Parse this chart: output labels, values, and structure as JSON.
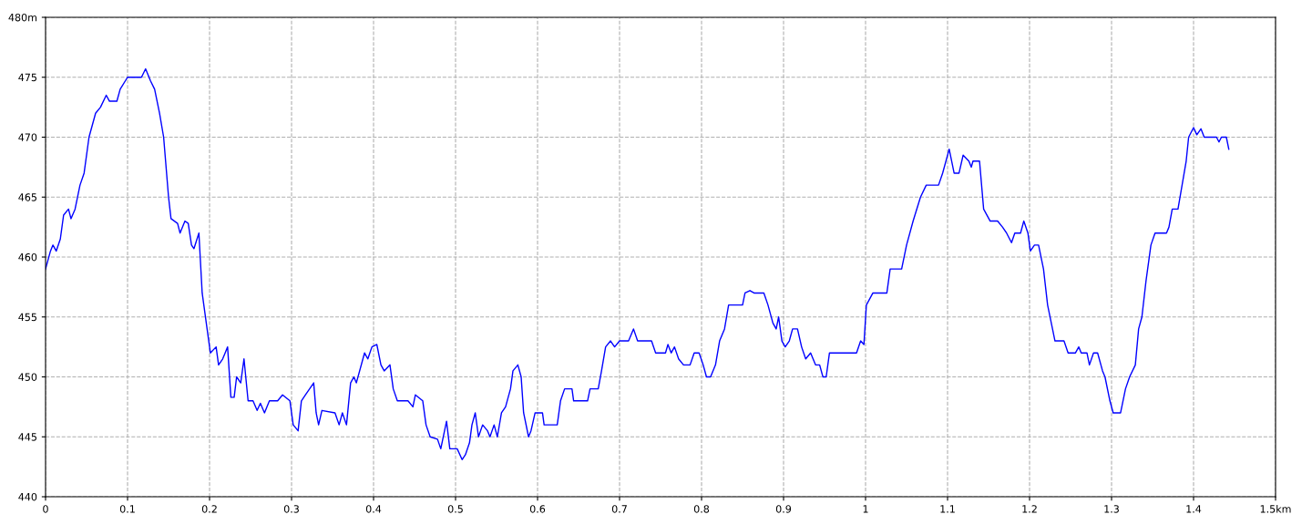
{
  "chart_data": {
    "type": "line",
    "xlim": [
      0,
      1.5
    ],
    "ylim": [
      440,
      480
    ],
    "xticks": [
      0,
      0.1,
      0.2,
      0.3,
      0.4,
      0.5,
      0.6,
      0.7,
      0.8,
      0.9,
      1,
      1.1,
      1.2,
      1.3,
      1.4,
      {
        "value": 1.5,
        "label": "1.5km"
      }
    ],
    "yticks": [
      440,
      445,
      450,
      455,
      460,
      465,
      470,
      475,
      {
        "value": 480,
        "label": "480m"
      }
    ],
    "grid": true,
    "marker": "none",
    "line_style": "solid",
    "series": [
      {
        "color": "#0000ff",
        "x": [
          0,
          0.006,
          0.009,
          0.013,
          0.018,
          0.022,
          0.028,
          0.031,
          0.036,
          0.042,
          0.047,
          0.053,
          0.061,
          0.067,
          0.074,
          0.078,
          0.087,
          0.091,
          0.1,
          0.117,
          0.122,
          0.128,
          0.133,
          0.139,
          0.144,
          0.15,
          0.153,
          0.161,
          0.164,
          0.17,
          0.174,
          0.178,
          0.181,
          0.187,
          0.191,
          0.197,
          0.201,
          0.208,
          0.211,
          0.216,
          0.219,
          0.222,
          0.226,
          0.23,
          0.233,
          0.238,
          0.242,
          0.247,
          0.253,
          0.258,
          0.262,
          0.267,
          0.273,
          0.283,
          0.289,
          0.298,
          0.302,
          0.308,
          0.312,
          0.317,
          0.322,
          0.327,
          0.33,
          0.333,
          0.337,
          0.353,
          0.358,
          0.362,
          0.367,
          0.372,
          0.376,
          0.379,
          0.389,
          0.393,
          0.398,
          0.404,
          0.409,
          0.413,
          0.42,
          0.424,
          0.429,
          0.442,
          0.448,
          0.451,
          0.46,
          0.464,
          0.469,
          0.478,
          0.482,
          0.489,
          0.493,
          0.502,
          0.508,
          0.512,
          0.517,
          0.52,
          0.524,
          0.528,
          0.533,
          0.539,
          0.542,
          0.547,
          0.551,
          0.556,
          0.561,
          0.567,
          0.57,
          0.576,
          0.58,
          0.583,
          0.589,
          0.592,
          0.597,
          0.606,
          0.608,
          0.624,
          0.628,
          0.633,
          0.642,
          0.644,
          0.661,
          0.664,
          0.674,
          0.678,
          0.683,
          0.689,
          0.694,
          0.7,
          0.711,
          0.717,
          0.722,
          0.739,
          0.744,
          0.756,
          0.759,
          0.763,
          0.767,
          0.772,
          0.778,
          0.786,
          0.791,
          0.797,
          0.802,
          0.806,
          0.811,
          0.817,
          0.822,
          0.828,
          0.833,
          0.85,
          0.853,
          0.859,
          0.864,
          0.876,
          0.881,
          0.887,
          0.891,
          0.894,
          0.898,
          0.902,
          0.907,
          0.911,
          0.917,
          0.922,
          0.927,
          0.933,
          0.939,
          0.944,
          0.948,
          0.952,
          0.956,
          0.989,
          0.994,
          0.998,
          1.001,
          1.009,
          1.026,
          1.03,
          1.044,
          1.05,
          1.058,
          1.067,
          1.074,
          1.089,
          1.094,
          1.102,
          1.108,
          1.114,
          1.119,
          1.126,
          1.129,
          1.131,
          1.139,
          1.144,
          1.152,
          1.161,
          1.167,
          1.172,
          1.178,
          1.182,
          1.189,
          1.193,
          1.198,
          1.201,
          1.206,
          1.211,
          1.217,
          1.222,
          1.228,
          1.231,
          1.242,
          1.247,
          1.256,
          1.26,
          1.263,
          1.27,
          1.273,
          1.278,
          1.283,
          1.289,
          1.292,
          1.298,
          1.302,
          1.311,
          1.317,
          1.322,
          1.329,
          1.333,
          1.337,
          1.342,
          1.348,
          1.353,
          1.367,
          1.37,
          1.374,
          1.381,
          1.386,
          1.391,
          1.394,
          1.4,
          1.404,
          1.409,
          1.413,
          1.428,
          1.431,
          1.434,
          1.44,
          1.443
        ],
        "values": [
          459,
          460.5,
          461,
          460.5,
          461.5,
          463.5,
          464,
          463.2,
          464,
          466,
          467,
          470,
          472,
          472.5,
          473.5,
          473,
          473,
          474,
          475,
          475,
          475.7,
          474.7,
          474,
          472,
          470,
          465,
          463.2,
          462.8,
          462,
          463,
          462.8,
          461,
          460.7,
          462,
          457,
          454,
          452,
          452.5,
          451,
          451.5,
          452,
          452.5,
          448.3,
          448.3,
          450,
          449.5,
          451.5,
          448,
          448,
          447.2,
          447.8,
          447,
          448,
          448,
          448.5,
          448,
          446,
          445.5,
          448,
          448.5,
          449,
          449.5,
          447,
          446,
          447.2,
          447,
          446,
          447,
          446,
          449.5,
          450,
          449.5,
          452,
          451.5,
          452.5,
          452.7,
          451,
          450.5,
          451,
          449,
          448,
          448,
          447.5,
          448.5,
          448,
          446,
          445,
          444.8,
          444,
          446.3,
          444,
          444,
          443.1,
          443.5,
          444.5,
          446,
          447,
          445,
          446,
          445.5,
          445,
          446,
          445,
          447,
          447.5,
          449,
          450.5,
          451,
          450,
          447,
          445,
          445.5,
          447,
          447,
          446,
          446,
          448,
          449,
          449,
          448,
          448,
          449,
          449,
          450.5,
          452.5,
          453,
          452.5,
          453,
          453,
          454,
          453,
          453,
          452,
          452,
          452.7,
          452,
          452.5,
          451.5,
          451,
          451,
          452,
          452,
          451,
          450,
          450,
          451,
          453,
          454,
          456,
          456,
          457,
          457.2,
          457,
          457,
          456,
          454.5,
          454,
          455,
          453,
          452.5,
          453,
          454,
          454,
          452.5,
          451.5,
          452,
          451,
          451,
          450,
          450,
          452,
          452,
          453,
          452.7,
          456,
          457,
          457,
          459,
          459,
          461,
          463,
          465,
          466,
          466,
          467,
          469,
          467,
          467,
          468.5,
          468,
          467.5,
          468,
          468,
          464,
          463,
          463,
          462.5,
          462,
          461.2,
          462,
          462,
          463,
          462,
          460.5,
          461,
          461,
          459,
          456,
          454,
          453,
          453,
          452,
          452,
          452.5,
          452,
          452,
          451,
          452,
          452,
          450.5,
          450,
          448,
          447,
          447,
          449,
          450,
          451,
          454,
          455,
          458,
          461,
          462,
          462,
          462.5,
          464,
          464,
          466,
          468,
          470,
          470.8,
          470.2,
          470.7,
          470,
          470,
          469.6,
          470,
          470,
          469
        ]
      }
    ]
  }
}
